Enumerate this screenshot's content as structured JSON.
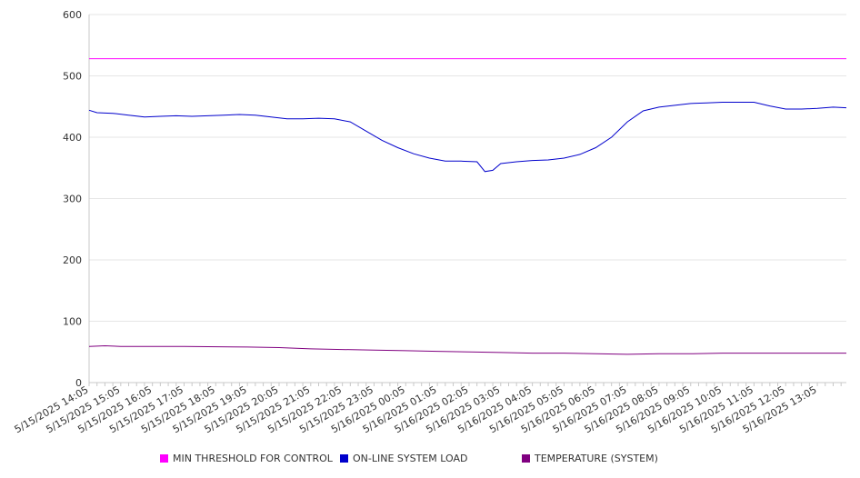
{
  "chart_data": {
    "type": "line",
    "title": "",
    "xlabel": "",
    "ylabel": "",
    "ylim": [
      0,
      600
    ],
    "y_ticks": [
      0,
      100,
      200,
      300,
      400,
      500,
      600
    ],
    "x_range": [
      "5/15/2025 14:05",
      "5/16/2025 14:00"
    ],
    "x_tick_labels": [
      "5/15/2025 14:05",
      "5/15/2025 15:05",
      "5/15/2025 16:05",
      "5/15/2025 17:05",
      "5/15/2025 18:05",
      "5/15/2025 19:05",
      "5/15/2025 20:05",
      "5/15/2025 21:05",
      "5/15/2025 22:05",
      "5/15/2025 23:05",
      "5/16/2025 00:05",
      "5/16/2025 01:05",
      "5/16/2025 02:05",
      "5/16/2025 03:05",
      "5/16/2025 04:05",
      "5/16/2025 05:05",
      "5/16/2025 06:05",
      "5/16/2025 07:05",
      "5/16/2025 08:05",
      "5/16/2025 09:05",
      "5/16/2025 10:05",
      "5/16/2025 11:05",
      "5/16/2025 12:05",
      "5/16/2025 13:05"
    ],
    "grid": true,
    "legend_position": "bottom",
    "series": [
      {
        "name": "MIN THRESHOLD FOR CONTROL",
        "color": "#ff00ff",
        "points": [
          [
            "5/15/2025 14:05",
            528
          ],
          [
            "5/16/2025 14:00",
            528
          ]
        ]
      },
      {
        "name": "ON-LINE SYSTEM LOAD",
        "color": "#0000cc",
        "points": [
          [
            "5/15/2025 14:05",
            444
          ],
          [
            "5/15/2025 14:20",
            440
          ],
          [
            "5/15/2025 14:50",
            439
          ],
          [
            "5/15/2025 15:20",
            436
          ],
          [
            "5/15/2025 15:50",
            433
          ],
          [
            "5/15/2025 16:20",
            434
          ],
          [
            "5/15/2025 16:50",
            435
          ],
          [
            "5/15/2025 17:20",
            434
          ],
          [
            "5/15/2025 17:50",
            435
          ],
          [
            "5/15/2025 18:20",
            436
          ],
          [
            "5/15/2025 18:50",
            437
          ],
          [
            "5/15/2025 19:20",
            436
          ],
          [
            "5/15/2025 19:50",
            433
          ],
          [
            "5/15/2025 20:20",
            430
          ],
          [
            "5/15/2025 20:50",
            430
          ],
          [
            "5/15/2025 21:20",
            431
          ],
          [
            "5/15/2025 21:50",
            430
          ],
          [
            "5/15/2025 22:20",
            425
          ],
          [
            "5/15/2025 22:50",
            410
          ],
          [
            "5/15/2025 23:20",
            395
          ],
          [
            "5/15/2025 23:50",
            383
          ],
          [
            "5/16/2025 00:20",
            373
          ],
          [
            "5/16/2025 00:50",
            366
          ],
          [
            "5/16/2025 01:20",
            361
          ],
          [
            "5/16/2025 01:50",
            361
          ],
          [
            "5/16/2025 02:20",
            360
          ],
          [
            "5/16/2025 02:35",
            344
          ],
          [
            "5/16/2025 02:50",
            346
          ],
          [
            "5/16/2025 03:05",
            357
          ],
          [
            "5/16/2025 03:35",
            360
          ],
          [
            "5/16/2025 04:05",
            362
          ],
          [
            "5/16/2025 04:35",
            363
          ],
          [
            "5/16/2025 05:05",
            366
          ],
          [
            "5/16/2025 05:35",
            372
          ],
          [
            "5/16/2025 06:05",
            383
          ],
          [
            "5/16/2025 06:35",
            400
          ],
          [
            "5/16/2025 07:05",
            425
          ],
          [
            "5/16/2025 07:35",
            443
          ],
          [
            "5/16/2025 08:05",
            449
          ],
          [
            "5/16/2025 08:35",
            452
          ],
          [
            "5/16/2025 09:05",
            455
          ],
          [
            "5/16/2025 09:35",
            456
          ],
          [
            "5/16/2025 10:05",
            457
          ],
          [
            "5/16/2025 10:35",
            457
          ],
          [
            "5/16/2025 11:05",
            457
          ],
          [
            "5/16/2025 11:35",
            451
          ],
          [
            "5/16/2025 12:05",
            446
          ],
          [
            "5/16/2025 12:35",
            446
          ],
          [
            "5/16/2025 13:05",
            447
          ],
          [
            "5/16/2025 13:35",
            449
          ],
          [
            "5/16/2025 14:00",
            448
          ]
        ]
      },
      {
        "name": "TEMPERATURE (SYSTEM)",
        "color": "#800080",
        "points": [
          [
            "5/15/2025 14:05",
            59
          ],
          [
            "5/15/2025 14:35",
            60
          ],
          [
            "5/15/2025 15:05",
            59
          ],
          [
            "5/15/2025 17:05",
            59
          ],
          [
            "5/15/2025 19:05",
            58
          ],
          [
            "5/15/2025 20:05",
            57
          ],
          [
            "5/15/2025 21:05",
            55
          ],
          [
            "5/15/2025 22:05",
            54
          ],
          [
            "5/15/2025 23:05",
            53
          ],
          [
            "5/16/2025 00:05",
            52
          ],
          [
            "5/16/2025 01:05",
            51
          ],
          [
            "5/16/2025 02:05",
            50
          ],
          [
            "5/16/2025 03:05",
            49
          ],
          [
            "5/16/2025 04:05",
            48
          ],
          [
            "5/16/2025 05:05",
            48
          ],
          [
            "5/16/2025 06:05",
            47
          ],
          [
            "5/16/2025 07:05",
            46
          ],
          [
            "5/16/2025 08:05",
            47
          ],
          [
            "5/16/2025 09:05",
            47
          ],
          [
            "5/16/2025 10:05",
            48
          ],
          [
            "5/16/2025 11:05",
            48
          ],
          [
            "5/16/2025 12:05",
            48
          ],
          [
            "5/16/2025 13:05",
            48
          ],
          [
            "5/16/2025 14:00",
            48
          ]
        ]
      }
    ]
  }
}
